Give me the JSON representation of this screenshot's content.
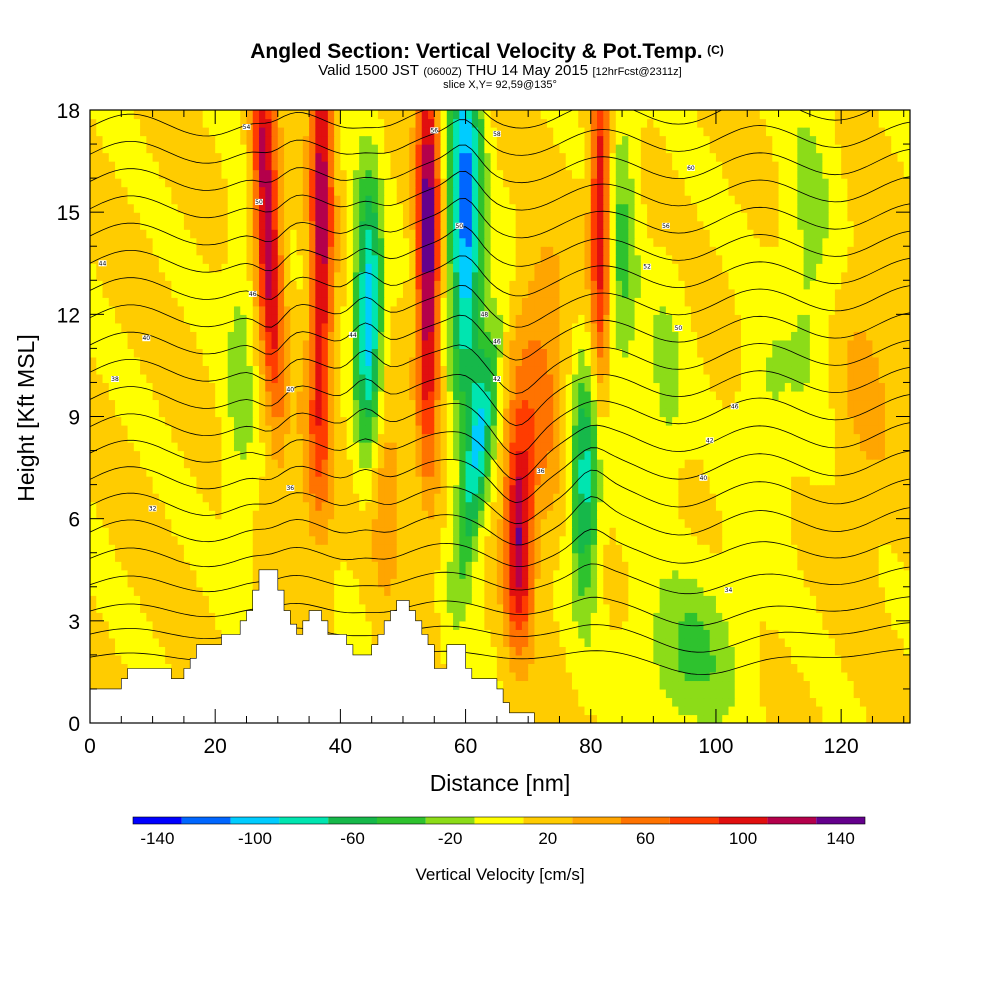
{
  "chart_data": {
    "type": "heatmap",
    "title": "Angled Section: Vertical Velocity & Pot.Temp.",
    "title_mark": "(C)",
    "subtitle": {
      "prefix": "Valid 1500 JST",
      "utc": "(0600Z)",
      "date": "THU 14 May 2015",
      "forecast": "[12hrFcst@2311z]"
    },
    "slice_label": "slice X,Y= 92,59@135°",
    "xlabel": "Distance [nm]",
    "ylabel": "Height [Kft MSL]",
    "xlim": [
      0,
      131
    ],
    "ylim": [
      0,
      18
    ],
    "x_ticks": [
      0,
      20,
      40,
      60,
      80,
      100,
      120
    ],
    "y_ticks": [
      0,
      3,
      6,
      9,
      12,
      15,
      18
    ],
    "colorbar": {
      "title": "Vertical Velocity [cm/s]",
      "labels": [
        "-140",
        "-100",
        "-60",
        "-20",
        "20",
        "60",
        "100",
        "140"
      ],
      "label_values": [
        -140,
        -100,
        -60,
        -20,
        20,
        60,
        100,
        140
      ],
      "bounds": [
        -150,
        -130,
        -110,
        -90,
        -70,
        -50,
        -30,
        -10,
        10,
        30,
        50,
        70,
        90,
        110,
        130,
        150
      ],
      "colors": [
        "#0000ff",
        "#0066ff",
        "#00ccff",
        "#00e5b0",
        "#16b84a",
        "#2ec22e",
        "#8cdc18",
        "#ffff00",
        "#ffcc00",
        "#ffa500",
        "#ff7300",
        "#ff3c00",
        "#e10f0f",
        "#b4004b",
        "#64008c"
      ]
    },
    "terrain": [
      [
        0,
        1.0
      ],
      [
        5,
        1.0
      ],
      [
        5,
        1.3
      ],
      [
        6,
        1.3
      ],
      [
        6,
        1.6
      ],
      [
        8,
        1.6
      ],
      [
        8,
        1.6
      ],
      [
        13,
        1.6
      ],
      [
        13,
        1.3
      ],
      [
        15,
        1.3
      ],
      [
        15,
        1.6
      ],
      [
        16,
        1.6
      ],
      [
        16,
        1.9
      ],
      [
        17,
        1.9
      ],
      [
        17,
        2.3
      ],
      [
        21,
        2.3
      ],
      [
        21,
        2.6
      ],
      [
        24,
        2.6
      ],
      [
        24,
        3.0
      ],
      [
        25,
        3.0
      ],
      [
        25,
        3.3
      ],
      [
        26,
        3.3
      ],
      [
        26,
        3.9
      ],
      [
        27,
        3.9
      ],
      [
        27,
        4.5
      ],
      [
        30,
        4.5
      ],
      [
        30,
        3.9
      ],
      [
        31,
        3.9
      ],
      [
        31,
        3.3
      ],
      [
        32,
        3.3
      ],
      [
        32,
        2.9
      ],
      [
        33,
        2.9
      ],
      [
        33,
        2.6
      ],
      [
        34,
        2.6
      ],
      [
        34,
        3.0
      ],
      [
        35,
        3.0
      ],
      [
        35,
        3.3
      ],
      [
        37,
        3.3
      ],
      [
        37,
        3.0
      ],
      [
        38,
        3.0
      ],
      [
        38,
        2.6
      ],
      [
        39,
        2.6
      ],
      [
        39,
        2.6
      ],
      [
        41,
        2.6
      ],
      [
        41,
        2.3
      ],
      [
        42,
        2.3
      ],
      [
        42,
        2.0
      ],
      [
        45,
        2.0
      ],
      [
        45,
        2.3
      ],
      [
        46,
        2.3
      ],
      [
        46,
        2.6
      ],
      [
        47,
        2.6
      ],
      [
        47,
        3.0
      ],
      [
        48,
        3.0
      ],
      [
        48,
        3.3
      ],
      [
        49,
        3.3
      ],
      [
        49,
        3.6
      ],
      [
        51,
        3.6
      ],
      [
        51,
        3.3
      ],
      [
        52,
        3.3
      ],
      [
        52,
        3.0
      ],
      [
        53,
        3.0
      ],
      [
        53,
        2.6
      ],
      [
        54,
        2.6
      ],
      [
        54,
        2.3
      ],
      [
        55,
        2.3
      ],
      [
        55,
        1.6
      ],
      [
        57,
        1.6
      ],
      [
        57,
        2.3
      ],
      [
        60,
        2.3
      ],
      [
        60,
        1.6
      ],
      [
        61,
        1.6
      ],
      [
        61,
        1.3
      ],
      [
        65,
        1.3
      ],
      [
        65,
        1.0
      ],
      [
        66,
        1.0
      ],
      [
        66,
        0.6
      ],
      [
        67,
        0.6
      ],
      [
        67,
        0.3
      ],
      [
        71,
        0.3
      ],
      [
        71,
        0
      ],
      [
        0,
        0
      ]
    ],
    "isentropes": {
      "base": [
        2.0,
        2.7,
        3.4,
        4.2,
        5.0,
        5.8,
        6.6,
        7.4,
        8.2,
        9.0,
        9.8,
        10.6,
        11.4,
        12.2,
        13.0,
        13.8,
        14.6,
        15.4,
        16.2,
        17.0,
        17.8
      ],
      "labels": [
        {
          "x": 10,
          "y": 6.3,
          "text": "32"
        },
        {
          "x": 4,
          "y": 10.1,
          "text": "38"
        },
        {
          "x": 9,
          "y": 11.3,
          "text": "40"
        },
        {
          "x": 2,
          "y": 13.5,
          "text": "44"
        },
        {
          "x": 26,
          "y": 12.6,
          "text": "46"
        },
        {
          "x": 27,
          "y": 15.3,
          "text": "50"
        },
        {
          "x": 25,
          "y": 17.5,
          "text": "54"
        },
        {
          "x": 32,
          "y": 6.9,
          "text": "36"
        },
        {
          "x": 32,
          "y": 9.8,
          "text": "40"
        },
        {
          "x": 42,
          "y": 11.4,
          "text": "44"
        },
        {
          "x": 55,
          "y": 17.4,
          "text": "56"
        },
        {
          "x": 59,
          "y": 14.6,
          "text": "50"
        },
        {
          "x": 63,
          "y": 12.0,
          "text": "48"
        },
        {
          "x": 65,
          "y": 11.2,
          "text": "46"
        },
        {
          "x": 65,
          "y": 10.1,
          "text": "42"
        },
        {
          "x": 65,
          "y": 17.3,
          "text": "58"
        },
        {
          "x": 72,
          "y": 7.4,
          "text": "36"
        },
        {
          "x": 96,
          "y": 16.3,
          "text": "60"
        },
        {
          "x": 92,
          "y": 14.6,
          "text": "56"
        },
        {
          "x": 89,
          "y": 13.4,
          "text": "52"
        },
        {
          "x": 94,
          "y": 11.6,
          "text": "50"
        },
        {
          "x": 103,
          "y": 9.3,
          "text": "46"
        },
        {
          "x": 99,
          "y": 8.3,
          "text": "42"
        },
        {
          "x": 98,
          "y": 7.2,
          "text": "40"
        },
        {
          "x": 102,
          "y": 3.9,
          "text": "34"
        }
      ]
    }
  }
}
